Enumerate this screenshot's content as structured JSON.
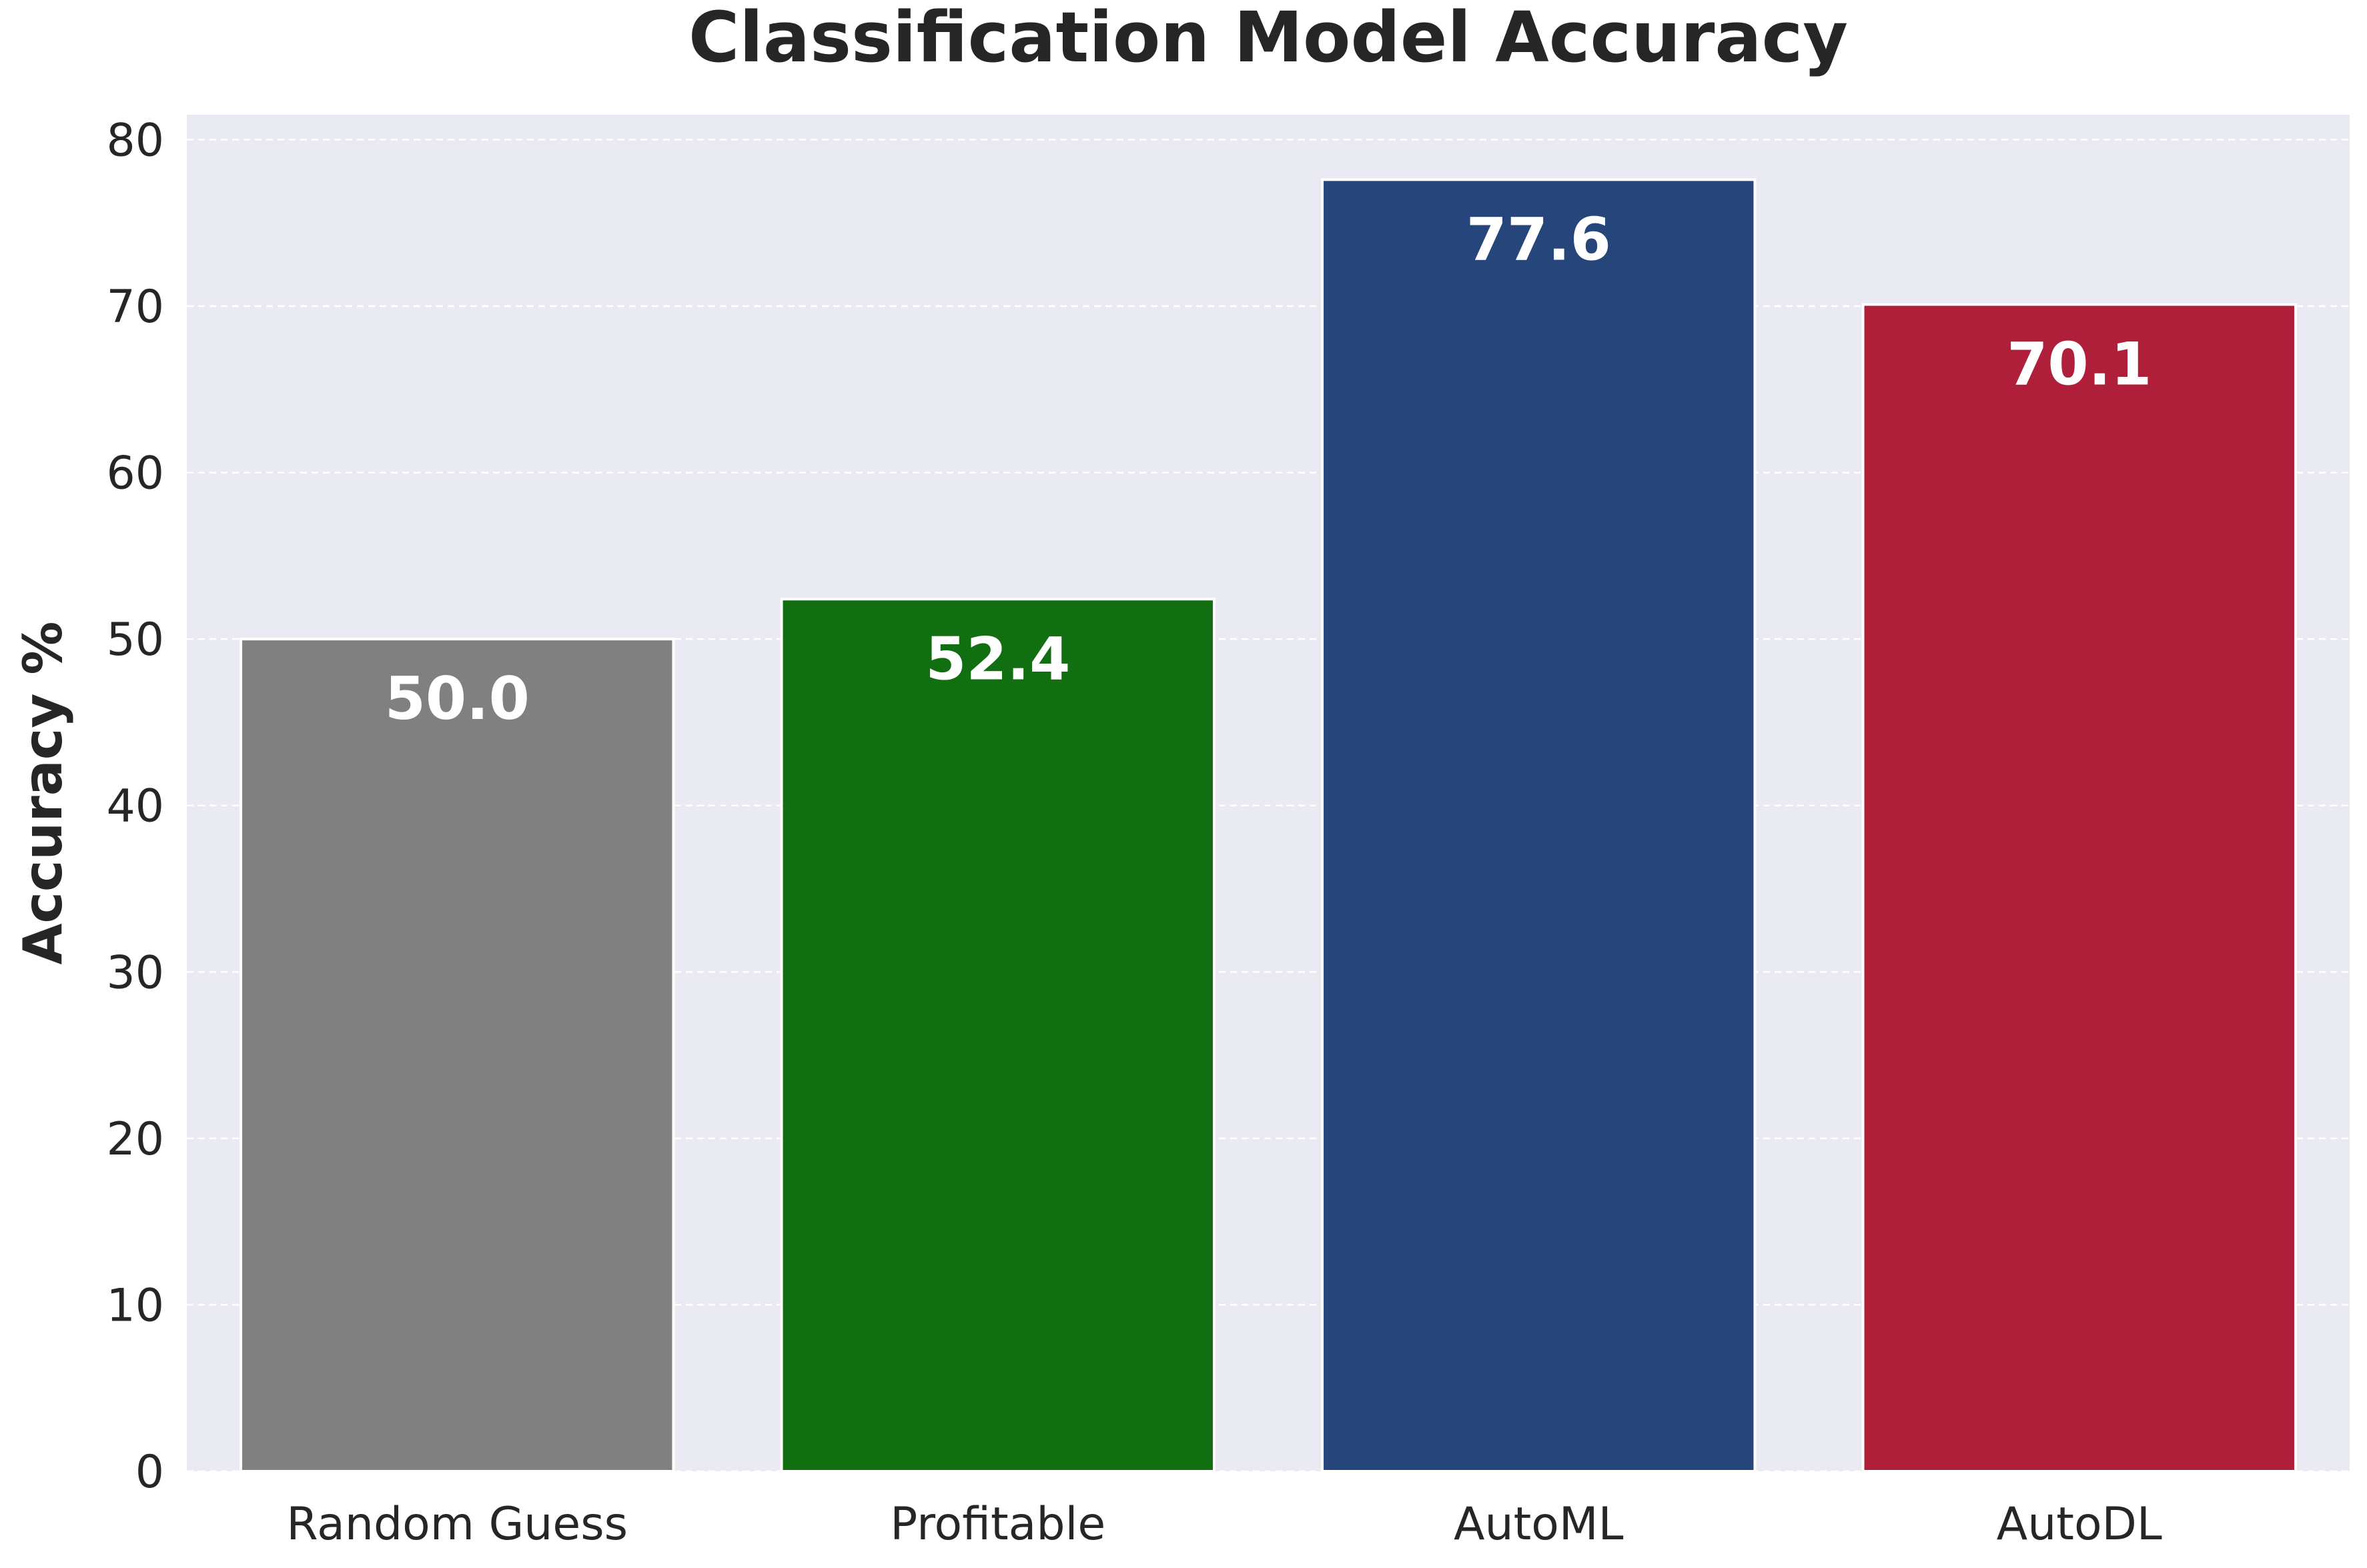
{
  "chart_data": {
    "type": "bar",
    "title": "Classification Model Accuracy",
    "xlabel": "",
    "ylabel": "Accuracy %",
    "categories": [
      "Random Guess",
      "Profitable",
      "AutoML",
      "AutoDL"
    ],
    "values": [
      50.0,
      52.4,
      77.6,
      70.1
    ],
    "value_labels": [
      "50.0",
      "52.4",
      "77.6",
      "70.1"
    ],
    "colors": [
      "#808080",
      "#116f11",
      "#26457b",
      "#b01f3a"
    ],
    "ylim": [
      0,
      81.5
    ],
    "yticks": [
      0,
      10,
      20,
      30,
      40,
      50,
      60,
      70,
      80
    ],
    "grid": true,
    "background": "#eaeaf2"
  }
}
